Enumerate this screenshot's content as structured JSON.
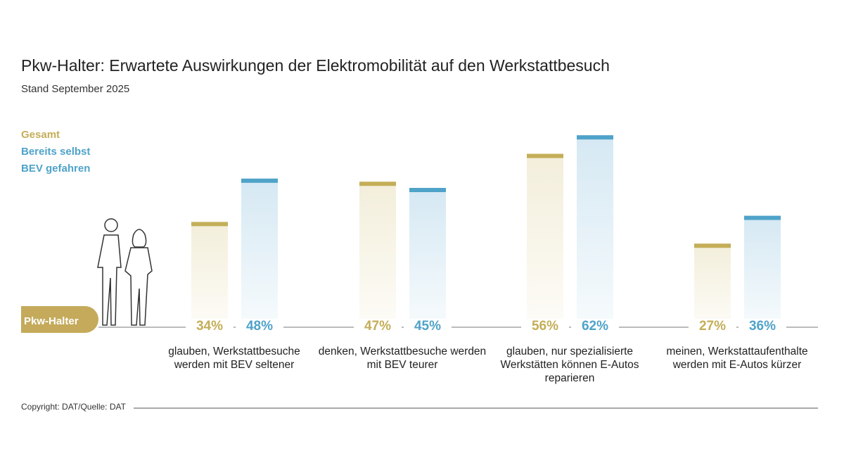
{
  "chart_data": {
    "type": "bar",
    "title": "Pkw-Halter: Erwartete Auswirkungen der Elektromobilität auf den Werkstattbesuch",
    "subtitle": "Stand September 2025",
    "group_label": "Pkw-Halter",
    "categories": [
      "glauben, Werkstattbesuche werden mit BEV seltener",
      "denken, Werkstattbesuche werden mit BEV teurer",
      "glauben, nur spezialisierte Werkstätten können E-Autos reparieren",
      "meinen, Werkstattaufenthalte werden mit E-Autos kürzer"
    ],
    "series": [
      {
        "name": "Gesamt",
        "color": "#c4ae58",
        "values": [
          34,
          47,
          56,
          27
        ],
        "value_labels": [
          "34%",
          "47%",
          "56%",
          "27%"
        ]
      },
      {
        "name": "Bereits selbst BEV gefahren",
        "color": "#4fa3c9",
        "values": [
          48,
          45,
          62,
          36
        ],
        "value_labels": [
          "48%",
          "45%",
          "62%",
          "36%"
        ]
      }
    ],
    "source": "Copyright: DAT/Quelle: DAT"
  }
}
